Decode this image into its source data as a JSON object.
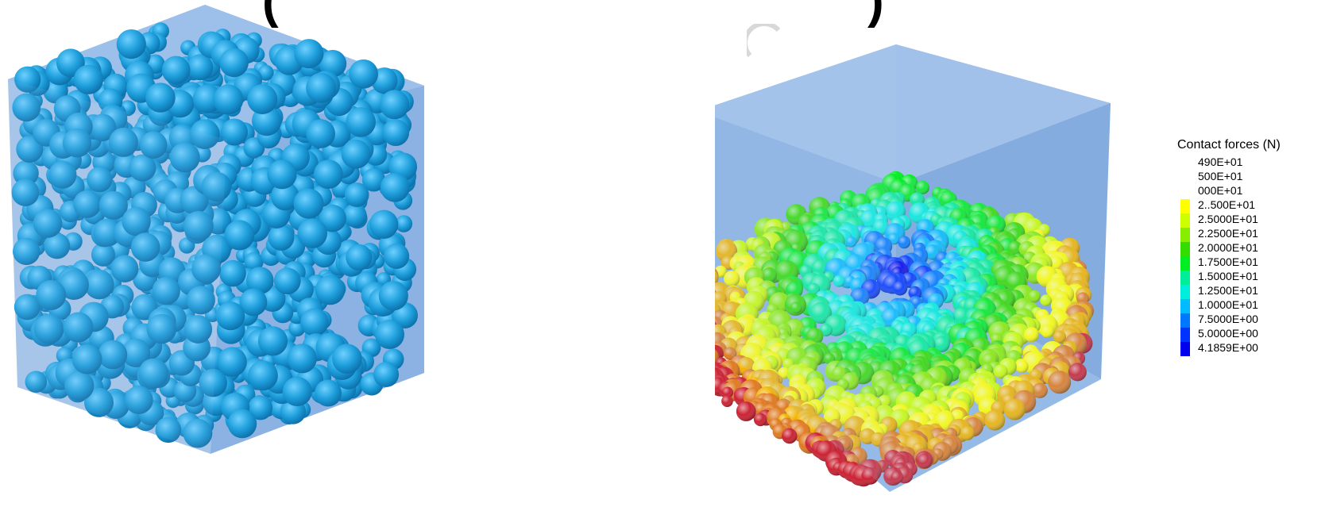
{
  "caption": {
    "open_paren": "(",
    "close_paren": ")"
  },
  "legend": {
    "title": "Contact forces (N)",
    "entries": [
      {
        "label": "490E+01",
        "color": ""
      },
      {
        "label": "500E+01",
        "color": ""
      },
      {
        "label": "000E+01",
        "color": ""
      },
      {
        "label": "2..500E+01",
        "color": "#ffff00"
      },
      {
        "label": "2.5000E+01",
        "color": "#ccff00"
      },
      {
        "label": "2.2500E+01",
        "color": "#88ee00"
      },
      {
        "label": "2.0000E+01",
        "color": "#33dd00"
      },
      {
        "label": "1.7500E+01",
        "color": "#00ee22"
      },
      {
        "label": "1.5000E+01",
        "color": "#00ee99"
      },
      {
        "label": "1.2500E+01",
        "color": "#00eedd"
      },
      {
        "label": "1.0000E+01",
        "color": "#00bbff"
      },
      {
        "label": "7.5000E+00",
        "color": "#0077ff"
      },
      {
        "label": "5.0000E+00",
        "color": "#0033ff"
      },
      {
        "label": "4.1859E+00",
        "color": "#0000ee"
      }
    ]
  },
  "colors": {
    "box_face": "#8fb4e3",
    "box_face_dark": "#7aa3d8",
    "sphere_uniform": "#1e9fdc",
    "background": "#ffffff"
  }
}
